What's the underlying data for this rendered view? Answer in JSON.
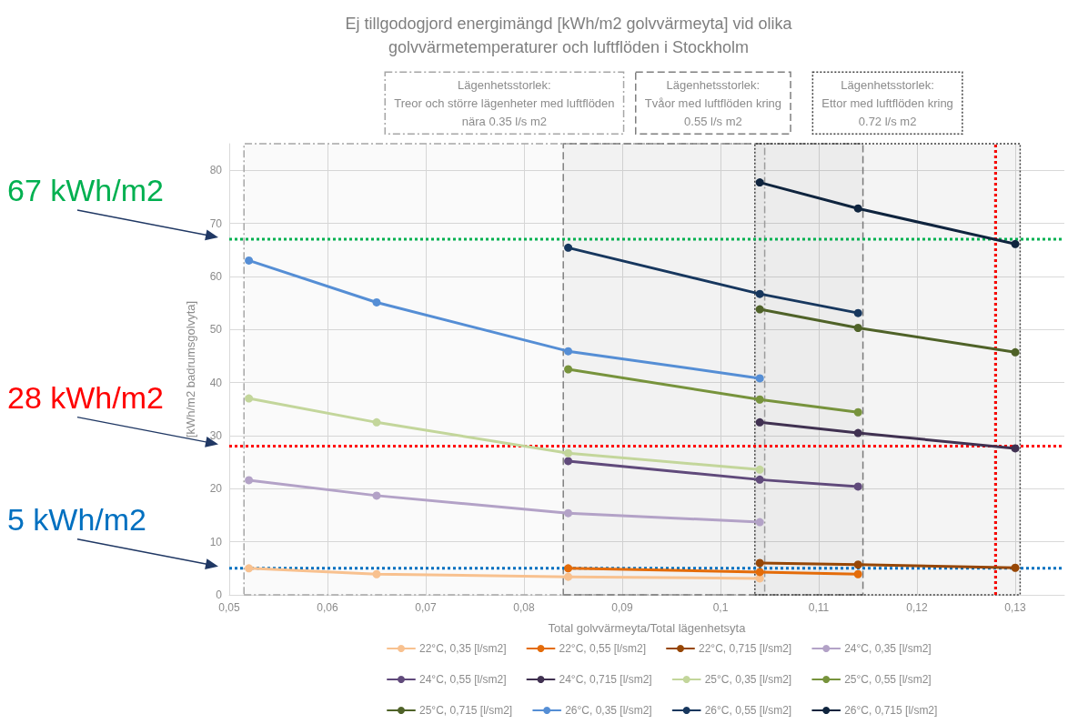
{
  "chart_data": {
    "type": "line",
    "title": "Ej tillgodogjord energimängd [kWh/m2 golvvärmeyta] vid olika\ngolvvärmetemperaturer och luftflöden i Stockholm",
    "xlabel": "Total golvvärmeyta/Total lägenhetsyta",
    "ylabel": "[kWh/m2 badrumsgolvyta]",
    "xlim": [
      0.05,
      0.135
    ],
    "xticks": [
      {
        "value": 0.05,
        "label": "0,05"
      },
      {
        "value": 0.06,
        "label": "0,06"
      },
      {
        "value": 0.07,
        "label": "0,07"
      },
      {
        "value": 0.08,
        "label": "0,08"
      },
      {
        "value": 0.09,
        "label": "0,09"
      },
      {
        "value": 0.1,
        "label": "0,1"
      },
      {
        "value": 0.11,
        "label": "0,11"
      },
      {
        "value": 0.12,
        "label": "0,12"
      },
      {
        "value": 0.13,
        "label": "0,13"
      }
    ],
    "ylim": [
      0,
      85
    ],
    "yticks": [
      0,
      10,
      20,
      30,
      40,
      50,
      60,
      70,
      80
    ],
    "grid": true,
    "legend": "bottom",
    "marker": "circle",
    "line_style": "solid",
    "series": [
      {
        "name": "22°C, 0,35 [l/sm2]",
        "color": "#f8c18f",
        "x": [
          0.052,
          0.065,
          0.0845,
          0.104
        ],
        "values": [
          5.0,
          3.9,
          3.4,
          3.1
        ]
      },
      {
        "name": "22°C, 0,55 [l/sm2]",
        "color": "#e46c0a",
        "x": [
          0.0845,
          0.104,
          0.114
        ],
        "values": [
          5.0,
          4.3,
          3.9
        ]
      },
      {
        "name": "22°C, 0,715 [l/sm2]",
        "color": "#974706",
        "x": [
          0.104,
          0.114,
          0.13
        ],
        "values": [
          6.0,
          5.7,
          5.1
        ]
      },
      {
        "name": "24°C, 0,35 [l/sm2]",
        "color": "#b3a2c7",
        "x": [
          0.052,
          0.065,
          0.0845,
          0.104
        ],
        "values": [
          21.6,
          18.7,
          15.4,
          13.7
        ]
      },
      {
        "name": "24°C, 0,55 [l/sm2]",
        "color": "#604a7b",
        "x": [
          0.0845,
          0.104,
          0.114
        ],
        "values": [
          25.2,
          21.7,
          20.4
        ]
      },
      {
        "name": "24°C, 0,715 [l/sm2]",
        "color": "#403151",
        "x": [
          0.104,
          0.114,
          0.13
        ],
        "values": [
          32.5,
          30.5,
          27.6
        ]
      },
      {
        "name": "25°C, 0,35 [l/sm2]",
        "color": "#c3d69b",
        "x": [
          0.052,
          0.065,
          0.0845,
          0.104
        ],
        "values": [
          37.0,
          32.5,
          26.7,
          23.6
        ]
      },
      {
        "name": "25°C, 0,55 [l/sm2]",
        "color": "#77933c",
        "x": [
          0.0845,
          0.104,
          0.114
        ],
        "values": [
          42.5,
          36.8,
          34.4
        ]
      },
      {
        "name": "25°C, 0,715 [l/sm2]",
        "color": "#4f6228",
        "x": [
          0.104,
          0.114,
          0.13
        ],
        "values": [
          53.8,
          50.3,
          45.7
        ]
      },
      {
        "name": "26°C, 0,35 [l/sm2]",
        "color": "#558ed5",
        "x": [
          0.052,
          0.065,
          0.0845,
          0.104
        ],
        "values": [
          63.0,
          55.1,
          45.9,
          40.8
        ]
      },
      {
        "name": "26°C, 0,55 [l/sm2]",
        "color": "#17375e",
        "x": [
          0.0845,
          0.104,
          0.114
        ],
        "values": [
          65.4,
          56.7,
          53.1
        ]
      },
      {
        "name": "26°C, 0,715 [l/sm2]",
        "color": "#0f243e",
        "x": [
          0.104,
          0.114,
          0.13
        ],
        "values": [
          77.7,
          72.8,
          66.1
        ]
      }
    ],
    "ref_lines": [
      {
        "axis": "y",
        "value": 67,
        "label": "67 kWh/m2",
        "color": "#00b050",
        "line_style": "dotted"
      },
      {
        "axis": "y",
        "value": 28,
        "label": "28 kWh/m2",
        "color": "#ff0000",
        "line_style": "dotted"
      },
      {
        "axis": "y",
        "value": 5,
        "label": "5 kWh/m2",
        "color": "#0070c0",
        "line_style": "dotted"
      },
      {
        "axis": "x",
        "value": 0.128,
        "color": "#00b050",
        "line_style": "dotted"
      },
      {
        "axis": "x",
        "value": 0.128,
        "color": "#ff0000",
        "line_style": "dotted"
      }
    ],
    "bands": [
      {
        "axis": "x",
        "from": 0.0515,
        "to": 0.1045,
        "label": "Lägenhetsstorlek:\nTreor och större lägenheter med luftflöden\nnära 0.35 l/s m2",
        "color": "#a6a6a6"
      },
      {
        "axis": "x",
        "from": 0.084,
        "to": 0.1145,
        "label": "Lägenhetsstorlek:\nTvåor med luftflöden kring\n0.55 l/s m2",
        "color": "#7f7f7f"
      },
      {
        "axis": "x",
        "from": 0.1035,
        "to": 0.1305,
        "label": "Lägenhetsstorlek:\nEttor med luftflöden kring\n0.72 l/s m2",
        "color": "#404040"
      }
    ]
  }
}
